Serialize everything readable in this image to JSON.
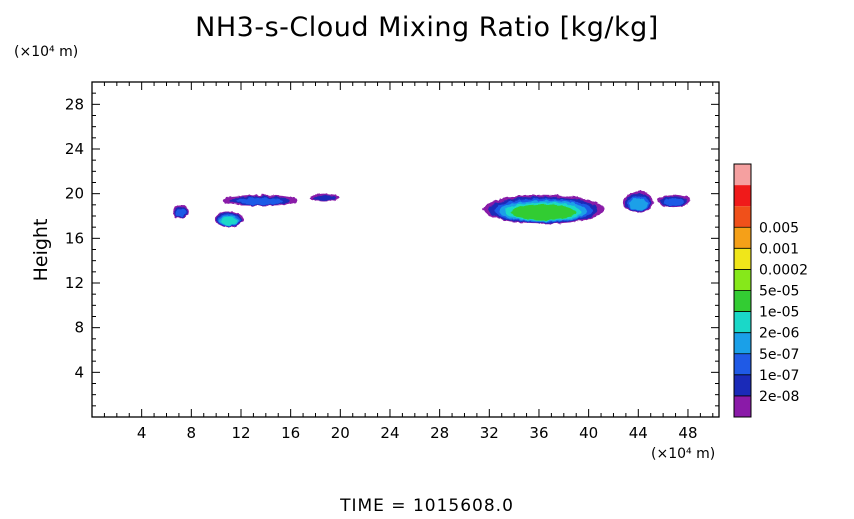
{
  "chart_data": {
    "type": "heatmap",
    "title": "NH3-s-Cloud Mixing Ratio [kg/kg]",
    "ylabel": "Height",
    "x_unit": "(×10⁴ m)",
    "y_unit": "(×10⁴ m)",
    "xlim": [
      0,
      50.5
    ],
    "ylim": [
      0,
      30
    ],
    "x_ticks": [
      4,
      8,
      12,
      16,
      20,
      24,
      28,
      32,
      36,
      40,
      44,
      48
    ],
    "y_ticks": [
      4,
      8,
      12,
      16,
      20,
      24,
      28
    ],
    "colorbar": {
      "levels": [
        "2e-08",
        "1e-07",
        "5e-07",
        "2e-06",
        "1e-05",
        "5e-05",
        "0.0002",
        "0.001",
        "0.005"
      ],
      "colors": [
        "#8a1aa8",
        "#1a2ab8",
        "#1f5ae6",
        "#1aa0e8",
        "#1ad8c8",
        "#33cc33",
        "#86e81a",
        "#f0e61a",
        "#f5a018",
        "#f0501a",
        "#f01a1a",
        "#f5a0a0"
      ]
    },
    "cloud_regions": [
      {
        "x_range": [
          6.5,
          7.8
        ],
        "y_range": [
          17.8,
          19.0
        ],
        "max_level": "5e-07"
      },
      {
        "x_range": [
          9.9,
          12.2
        ],
        "y_range": [
          17.0,
          18.4
        ],
        "max_level": "1e-05"
      },
      {
        "x_range": [
          10.5,
          16.5
        ],
        "y_range": [
          18.9,
          19.9
        ],
        "max_level": "5e-07"
      },
      {
        "x_range": [
          17.5,
          19.9
        ],
        "y_range": [
          19.3,
          20.0
        ],
        "max_level": "1e-07"
      },
      {
        "x_range": [
          31.5,
          41.2
        ],
        "y_range": [
          17.3,
          19.9
        ],
        "max_level": "5e-05"
      },
      {
        "x_range": [
          42.8,
          45.2
        ],
        "y_range": [
          18.3,
          20.2
        ],
        "max_level": "2e-06"
      },
      {
        "x_range": [
          45.5,
          48.2
        ],
        "y_range": [
          18.8,
          19.9
        ],
        "max_level": "5e-07"
      }
    ],
    "grid": false,
    "legend": "colorbar-right"
  },
  "footer": {
    "time_label": "TIME = 1015608.0"
  }
}
